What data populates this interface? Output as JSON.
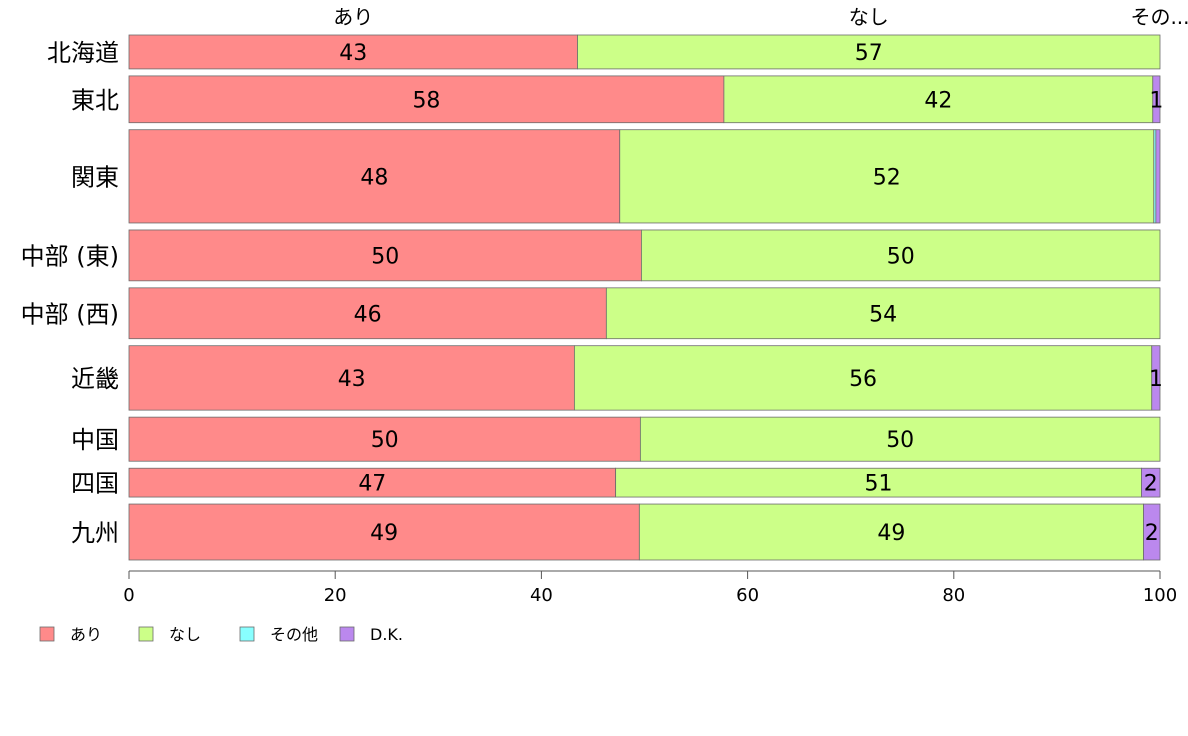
{
  "chart_data": {
    "type": "bar",
    "orientation": "horizontal",
    "stacked": true,
    "categories": [
      "北海道",
      "東北",
      "関東",
      "中部 (東)",
      "中部 (西)",
      "近畿",
      "中国",
      "四国",
      "九州"
    ],
    "category_weights": [
      1.0,
      1.38,
      2.75,
      1.5,
      1.5,
      1.9,
      1.3,
      0.85,
      1.65
    ],
    "series": [
      {
        "name": "あり",
        "color": "#FF8A8A",
        "values": [
          43.5,
          57.7,
          47.6,
          49.7,
          46.3,
          43.2,
          49.6,
          47.2,
          49.5
        ],
        "labels": [
          "43",
          "58",
          "48",
          "50",
          "46",
          "43",
          "50",
          "47",
          "49"
        ]
      },
      {
        "name": "なし",
        "color": "#CCFF88",
        "values": [
          56.5,
          41.6,
          51.8,
          50.3,
          53.7,
          56.0,
          50.4,
          51.0,
          48.9
        ],
        "labels": [
          "57",
          "42",
          "52",
          "50",
          "54",
          "56",
          "50",
          "51",
          "49"
        ]
      },
      {
        "name": "その他",
        "color": "#88FFFF",
        "values": [
          0,
          0,
          0.2,
          0,
          0,
          0,
          0,
          0,
          0
        ],
        "labels": [
          "",
          "",
          "",
          "",
          "",
          "",
          "",
          "",
          ""
        ]
      },
      {
        "name": "D.K.",
        "color": "#BB88EE",
        "values": [
          0,
          0.7,
          0.4,
          0,
          0,
          0.8,
          0,
          1.8,
          1.6
        ],
        "labels": [
          "",
          "1",
          "",
          "",
          "",
          "1",
          "",
          "2",
          "2"
        ]
      }
    ],
    "top_labels": [
      "あり",
      "なし",
      "その..."
    ],
    "xlim": [
      0,
      100
    ],
    "xticks": [
      0,
      20,
      40,
      60,
      80,
      100
    ],
    "legend": {
      "position": "bottom-left",
      "entries": [
        "あり",
        "なし",
        "その他",
        "D.K."
      ]
    },
    "grid": false
  }
}
